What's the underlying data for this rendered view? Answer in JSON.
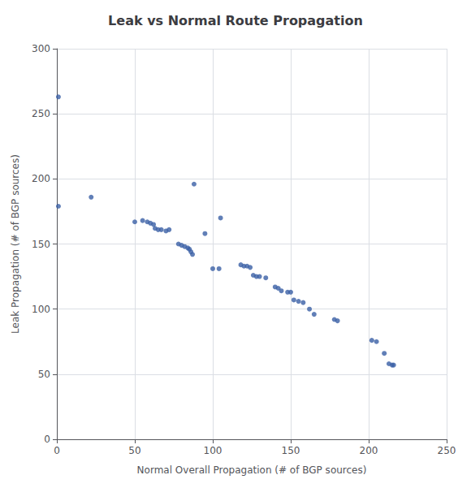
{
  "chart_data": {
    "type": "scatter",
    "title": "Leak vs Normal Route Propagation",
    "xlabel": "Normal Overall Propagation (# of BGP sources)",
    "ylabel": "Leak Propagation (# of BGP sources)",
    "x": [
      1,
      1,
      22,
      50,
      55,
      58,
      60,
      62,
      63,
      65,
      67,
      70,
      72,
      78,
      80,
      82,
      84,
      85,
      86,
      87,
      88,
      95,
      100,
      104,
      105,
      118,
      120,
      122,
      124,
      126,
      128,
      130,
      134,
      140,
      142,
      144,
      148,
      150,
      152,
      155,
      158,
      162,
      165,
      178,
      180,
      202,
      205,
      210,
      213,
      215,
      216
    ],
    "values": [
      263,
      179,
      186,
      167,
      168,
      167,
      166,
      165,
      162,
      161,
      161,
      160,
      161,
      150,
      149,
      148,
      147,
      146,
      144,
      142,
      196,
      158,
      131,
      131,
      170,
      134,
      133,
      133,
      132,
      126,
      125,
      125,
      124,
      117,
      116,
      114,
      113,
      113,
      107,
      106,
      105,
      100,
      96,
      92,
      91,
      76,
      75,
      66,
      58,
      57,
      57
    ],
    "color": "#3a5fa5",
    "xlim": [
      0,
      250
    ],
    "ylim": [
      0,
      300
    ],
    "xticks": [
      0,
      50,
      100,
      150,
      200,
      250
    ],
    "yticks": [
      0,
      50,
      100,
      150,
      200,
      250,
      300
    ],
    "grid": true
  }
}
